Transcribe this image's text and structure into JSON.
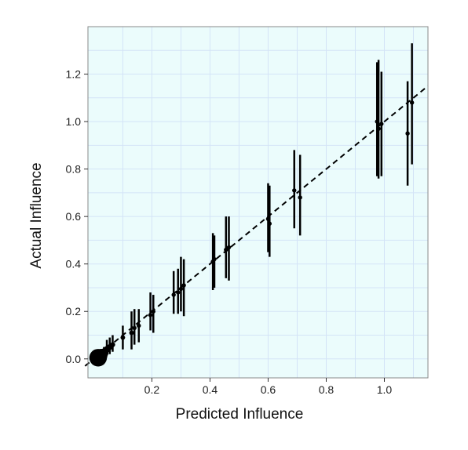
{
  "chart_data": {
    "type": "scatter",
    "xlabel": "Predicted Influence",
    "ylabel": "Actual Influence",
    "xlim": [
      -0.02,
      1.15
    ],
    "ylim": [
      -0.08,
      1.4
    ],
    "x_ticks": [
      0.2,
      0.4,
      0.6,
      0.8,
      1.0
    ],
    "x_tick_labels": [
      "0.2",
      "0.4",
      "0.6",
      "0.8",
      "1.0"
    ],
    "y_ticks": [
      0.0,
      0.2,
      0.4,
      0.6,
      0.8,
      1.0,
      1.2
    ],
    "y_tick_labels": [
      "0.0",
      "0.2",
      "0.4",
      "0.6",
      "0.8",
      "1.0",
      "1.2"
    ],
    "grid": true,
    "reference_line": {
      "style": "dashed",
      "slope": 1,
      "intercept": 0
    },
    "colors": {
      "panel_background": "#ebfcfc",
      "grid": "#d4e4f7",
      "points": "#000000",
      "border": "#8a8a8a"
    },
    "points": [
      {
        "x": 0.015,
        "y": 0.005,
        "lo": 0.0,
        "hi": 0.015,
        "size": 20
      },
      {
        "x": 0.025,
        "y": 0.015,
        "lo": 0.0,
        "hi": 0.03,
        "size": 14
      },
      {
        "x": 0.035,
        "y": 0.025,
        "lo": 0.005,
        "hi": 0.05,
        "size": 9
      },
      {
        "x": 0.045,
        "y": 0.04,
        "lo": 0.015,
        "hi": 0.08,
        "size": 6
      },
      {
        "x": 0.055,
        "y": 0.05,
        "lo": 0.02,
        "hi": 0.09,
        "size": 5
      },
      {
        "x": 0.065,
        "y": 0.06,
        "lo": 0.03,
        "hi": 0.1,
        "size": 4
      },
      {
        "x": 0.1,
        "y": 0.09,
        "lo": 0.04,
        "hi": 0.14,
        "size": 3.5
      },
      {
        "x": 0.13,
        "y": 0.11,
        "lo": 0.04,
        "hi": 0.2,
        "size": 3.5
      },
      {
        "x": 0.14,
        "y": 0.13,
        "lo": 0.06,
        "hi": 0.21,
        "size": 3
      },
      {
        "x": 0.155,
        "y": 0.14,
        "lo": 0.07,
        "hi": 0.21,
        "size": 3
      },
      {
        "x": 0.195,
        "y": 0.185,
        "lo": 0.12,
        "hi": 0.28,
        "size": 3
      },
      {
        "x": 0.205,
        "y": 0.2,
        "lo": 0.11,
        "hi": 0.27,
        "size": 3
      },
      {
        "x": 0.275,
        "y": 0.27,
        "lo": 0.19,
        "hi": 0.37,
        "size": 3
      },
      {
        "x": 0.29,
        "y": 0.28,
        "lo": 0.19,
        "hi": 0.38,
        "size": 3
      },
      {
        "x": 0.3,
        "y": 0.295,
        "lo": 0.2,
        "hi": 0.43,
        "size": 3
      },
      {
        "x": 0.31,
        "y": 0.31,
        "lo": 0.18,
        "hi": 0.42,
        "size": 3
      },
      {
        "x": 0.41,
        "y": 0.41,
        "lo": 0.29,
        "hi": 0.53,
        "size": 3
      },
      {
        "x": 0.415,
        "y": 0.42,
        "lo": 0.3,
        "hi": 0.52,
        "size": 3
      },
      {
        "x": 0.455,
        "y": 0.46,
        "lo": 0.34,
        "hi": 0.6,
        "size": 3
      },
      {
        "x": 0.465,
        "y": 0.47,
        "lo": 0.33,
        "hi": 0.6,
        "size": 3
      },
      {
        "x": 0.6,
        "y": 0.59,
        "lo": 0.45,
        "hi": 0.74,
        "size": 3
      },
      {
        "x": 0.605,
        "y": 0.57,
        "lo": 0.43,
        "hi": 0.73,
        "size": 3
      },
      {
        "x": 0.69,
        "y": 0.71,
        "lo": 0.55,
        "hi": 0.88,
        "size": 3
      },
      {
        "x": 0.71,
        "y": 0.68,
        "lo": 0.52,
        "hi": 0.86,
        "size": 3
      },
      {
        "x": 0.975,
        "y": 1.0,
        "lo": 0.77,
        "hi": 1.25,
        "size": 3
      },
      {
        "x": 0.98,
        "y": 0.97,
        "lo": 0.76,
        "hi": 1.26,
        "size": 3
      },
      {
        "x": 0.99,
        "y": 0.99,
        "lo": 0.77,
        "hi": 1.21,
        "size": 3
      },
      {
        "x": 1.08,
        "y": 0.95,
        "lo": 0.73,
        "hi": 1.17,
        "size": 3
      },
      {
        "x": 1.095,
        "y": 1.08,
        "lo": 0.82,
        "hi": 1.33,
        "size": 3
      }
    ]
  }
}
